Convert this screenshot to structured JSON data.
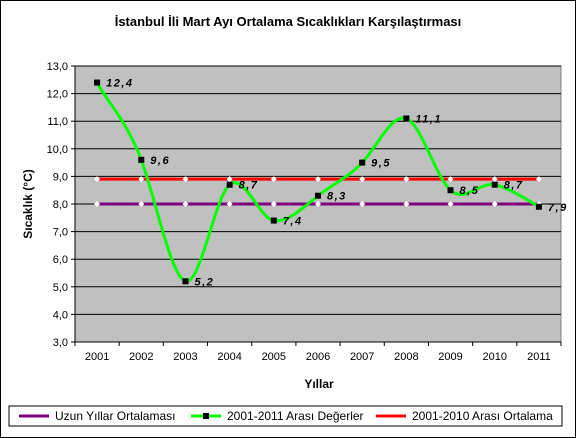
{
  "chart_data": {
    "type": "line",
    "title": "İstanbul İli Mart Ayı Ortalama Sıcaklıkları Karşılaştırması",
    "xlabel": "Yıllar",
    "ylabel": "Sıcaklık (°C)",
    "categories": [
      "2001",
      "2002",
      "2003",
      "2004",
      "2005",
      "2006",
      "2007",
      "2008",
      "2009",
      "2010",
      "2011"
    ],
    "ylim": [
      3.0,
      13.0
    ],
    "yticks": [
      "3,0",
      "4,0",
      "5,0",
      "6,0",
      "7,0",
      "8,0",
      "9,0",
      "10,0",
      "11,0",
      "12,0",
      "13,0"
    ],
    "grid": true,
    "legend_position": "bottom",
    "series": [
      {
        "name": "Uzun Yıllar Ortalaması",
        "color": "#800080",
        "marker": "diamond",
        "values": [
          8.0,
          8.0,
          8.0,
          8.0,
          8.0,
          8.0,
          8.0,
          8.0,
          8.0,
          8.0,
          8.0
        ]
      },
      {
        "name": "2001-2011 Arası Değerler",
        "color": "#00ff00",
        "marker": "square",
        "smooth": true,
        "values": [
          12.4,
          9.6,
          5.2,
          8.7,
          7.4,
          8.3,
          9.5,
          11.1,
          8.5,
          8.7,
          7.9
        ],
        "labels": [
          "12,4",
          "9,6",
          "5,2",
          "8,7",
          "7,4",
          "8,3",
          "9,5",
          "11,1",
          "8,5",
          "8,7",
          "7,9"
        ]
      },
      {
        "name": "2001-2010 Arası Ortalama",
        "color": "#ff0000",
        "marker": "diamond",
        "values": [
          8.9,
          8.9,
          8.9,
          8.9,
          8.9,
          8.9,
          8.9,
          8.9,
          8.9,
          8.9,
          8.9
        ]
      }
    ],
    "plot_background": "#c0c0c0"
  }
}
